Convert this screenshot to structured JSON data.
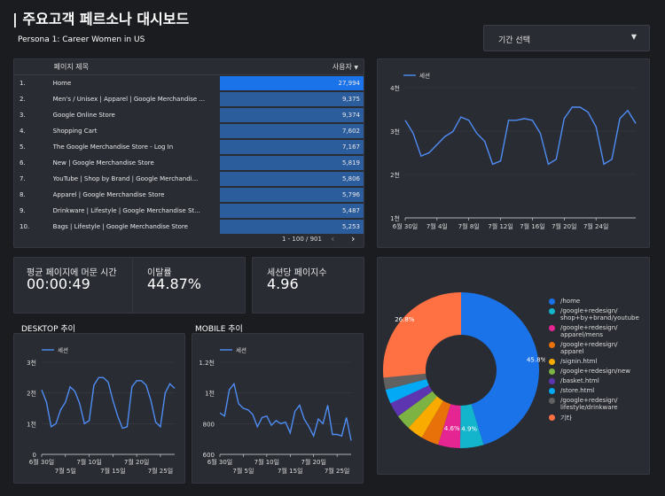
{
  "header": {
    "title": "| 주요고객 페르소나 대시보드",
    "subtitle": "Persona 1: Career Women in US"
  },
  "date_picker": {
    "label": "기간 선택"
  },
  "table": {
    "col_page": "페이지 제목",
    "col_users": "사용자",
    "rows": [
      {
        "rank": "1.",
        "page": "Home",
        "users": "27,994",
        "value": 27994
      },
      {
        "rank": "2.",
        "page": "Men's / Unisex | Apparel | Google Merchandise ...",
        "users": "9,375",
        "value": 9375
      },
      {
        "rank": "3.",
        "page": "Google Online Store",
        "users": "9,374",
        "value": 9374
      },
      {
        "rank": "4.",
        "page": "Shopping Cart",
        "users": "7,602",
        "value": 7602
      },
      {
        "rank": "5.",
        "page": "The Google Merchandise Store - Log In",
        "users": "7,167",
        "value": 7167
      },
      {
        "rank": "6.",
        "page": "New | Google Merchandise Store",
        "users": "5,819",
        "value": 5819
      },
      {
        "rank": "7.",
        "page": "YouTube | Shop by Brand | Google Merchandi...",
        "users": "5,806",
        "value": 5806
      },
      {
        "rank": "8.",
        "page": "Apparel | Google Merchandise Store",
        "users": "5,796",
        "value": 5796
      },
      {
        "rank": "9.",
        "page": "Drinkware | Lifestyle | Google Merchandise St...",
        "users": "5,487",
        "value": 5487
      },
      {
        "rank": "10.",
        "page": "Bags | Lifestyle | Google Merchandise Store",
        "users": "5,253",
        "value": 5253
      }
    ],
    "pagination": "1 - 100 / 901"
  },
  "kpis": [
    {
      "label": "평균 페이지에 머문 시간",
      "value": "00:00:49"
    },
    {
      "label": "이탈률",
      "value": "44.87%"
    },
    {
      "label": "세션당 페이지수",
      "value": "4.96"
    }
  ],
  "desktop_label": "DESKTOP 추이",
  "mobile_label": "MOBILE 추이",
  "colors": {
    "accent": "#1a73e8",
    "line": "#4e8df5"
  },
  "chart_data": [
    {
      "type": "line",
      "name": "sessions-main",
      "series": [
        {
          "name": "세션",
          "values": [
            3000,
            2600,
            1900,
            2000,
            2250,
            2500,
            2650,
            3100,
            3000,
            2600,
            2350,
            1650,
            1750,
            3000,
            3000,
            3050,
            3000,
            2600,
            1650,
            1800,
            3050,
            3400,
            3400,
            3250,
            2800,
            1650,
            1800,
            3050,
            3300,
            2900
          ]
        }
      ],
      "x_ticks": [
        "6월 30일",
        "7월 4일",
        "7월 8일",
        "7월 12일",
        "7월 16일",
        "7월 20일",
        "7월 24일"
      ],
      "y_ticks": [
        "4천",
        "3천",
        "2천",
        "1천"
      ],
      "ylim": [
        0,
        4000
      ]
    },
    {
      "type": "line",
      "name": "desktop",
      "series": [
        {
          "name": "세션",
          "values": [
            2100,
            1700,
            900,
            1000,
            1450,
            1700,
            2200,
            2050,
            1650,
            1000,
            1100,
            2250,
            2500,
            2500,
            2350,
            1750,
            1250,
            850,
            900,
            2200,
            2400,
            2400,
            2250,
            1750,
            1050,
            900,
            2000,
            2300,
            2150
          ]
        }
      ],
      "x_ticks_top": [
        "6월 30일",
        "7월 10일",
        "7월 20일"
      ],
      "x_ticks_bottom": [
        "7월 5일",
        "7월 15일",
        "7월 25일"
      ],
      "y_ticks": [
        "3천",
        "2천",
        "1천",
        "0"
      ],
      "ylim": [
        0,
        3000
      ]
    },
    {
      "type": "line",
      "name": "mobile",
      "series": [
        {
          "name": "세션",
          "values": [
            870,
            850,
            1020,
            1060,
            930,
            900,
            890,
            860,
            780,
            840,
            850,
            790,
            820,
            800,
            810,
            740,
            880,
            920,
            830,
            780,
            720,
            830,
            800,
            920,
            730,
            730,
            720,
            840,
            690
          ]
        }
      ],
      "x_ticks_top": [
        "6월 30일",
        "7월 10일",
        "7월 20일"
      ],
      "x_ticks_bottom": [
        "7월 5일",
        "7월 15일",
        "7월 25일"
      ],
      "y_ticks": [
        "1.2천",
        "1천",
        "800",
        "600"
      ],
      "ylim": [
        600,
        1200
      ]
    },
    {
      "type": "pie",
      "name": "page-share",
      "slices": [
        {
          "label": "/home",
          "value": 45.8,
          "color": "#1a73e8",
          "display": "45.8%"
        },
        {
          "label": "/google+redesign/\nshop+by+brand/youtube",
          "value": 4.9,
          "color": "#12b5cb",
          "display": "4.9%"
        },
        {
          "label": "/google+redesign/\napparel/mens",
          "value": 4.6,
          "color": "#e52592",
          "display": "4.6%"
        },
        {
          "label": "/google+redesign/\napparel",
          "value": 3.7,
          "color": "#e8710a",
          "display": ""
        },
        {
          "label": "/signin.html",
          "value": 3.4,
          "color": "#f9ab00",
          "display": ""
        },
        {
          "label": "/google+redesign/new",
          "value": 3.2,
          "color": "#7cb342",
          "display": ""
        },
        {
          "label": "/basket.html",
          "value": 3.1,
          "color": "#5e35b1",
          "display": ""
        },
        {
          "label": "/store.html",
          "value": 3.0,
          "color": "#03a9f4",
          "display": ""
        },
        {
          "label": "/google+redesign/\nlifestyle/drinkware",
          "value": 2.5,
          "color": "#616161",
          "display": ""
        },
        {
          "label": "기타",
          "value": 26.8,
          "color": "#ff7043",
          "display": "26.8%"
        }
      ]
    }
  ]
}
